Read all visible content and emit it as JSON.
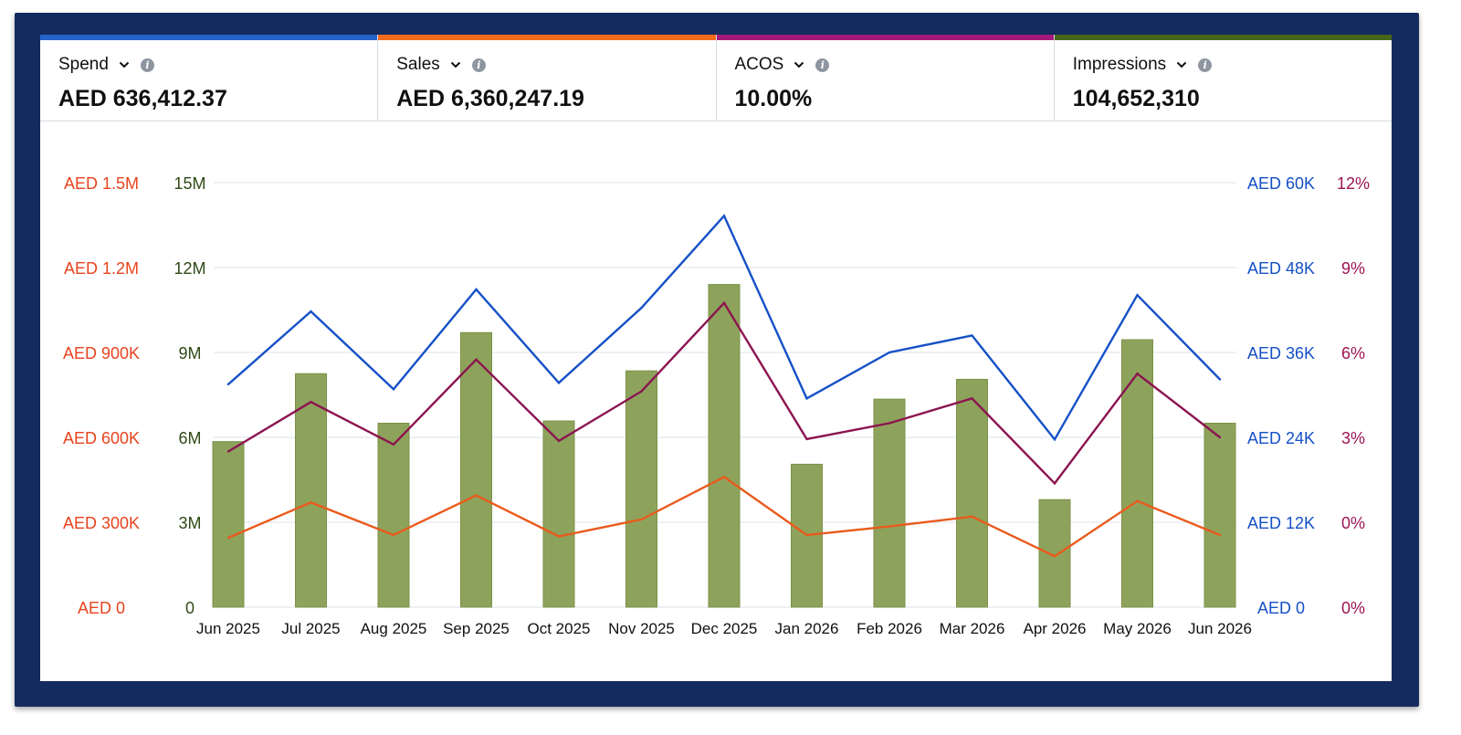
{
  "metrics": [
    {
      "label": "Spend",
      "value": "AED 636,412.37",
      "color": "#2563c9"
    },
    {
      "label": "Sales",
      "value": "AED  6,360,247.19",
      "color": "#f26b1d"
    },
    {
      "label": "ACOS",
      "value": "10.00%",
      "color": "#a3197a"
    },
    {
      "label": "Impressions",
      "value": "104,652,310",
      "color": "#47661a"
    }
  ],
  "chart_data": {
    "type": "bar",
    "categories": [
      "Jun 2025",
      "Jul 2025",
      "Aug 2025",
      "Sep 2025",
      "Oct 2025",
      "Nov 2025",
      "Dec 2025",
      "Jan 2026",
      "Feb 2026",
      "Mar 2026",
      "Apr 2026",
      "May 2026",
      "Jun 2026"
    ],
    "grid": true,
    "axes": {
      "left_outer": {
        "ticks": [
          "AED 0",
          "AED 300K",
          "AED 600K",
          "AED 900K",
          "AED 1.2M",
          "AED 1.5M"
        ],
        "range": [
          0,
          1500000
        ],
        "color": "#e8431e"
      },
      "left_inner": {
        "ticks": [
          "0",
          "3M",
          "6M",
          "9M",
          "12M",
          "15M"
        ],
        "range": [
          0,
          15000000
        ],
        "color": "#2f4a16"
      },
      "right_inner": {
        "ticks": [
          "AED 0",
          "AED 12K",
          "AED 24K",
          "AED 36K",
          "AED 48K",
          "AED 60K"
        ],
        "range": [
          0,
          60000
        ],
        "color": "#1550c7"
      },
      "right_outer": {
        "ticks": [
          "0%",
          "0%",
          "3%",
          "6%",
          "9%",
          "12%"
        ],
        "range": [
          0,
          12
        ],
        "color": "#9c1453"
      }
    },
    "series": [
      {
        "type": "bar",
        "axis": "left_inner",
        "color": "#8da35c",
        "values": [
          5850000,
          8250000,
          6500000,
          9700000,
          6580000,
          8350000,
          11400000,
          5050000,
          7350000,
          8050000,
          3800000,
          9450000,
          6500000
        ]
      },
      {
        "type": "line",
        "axis": "right_inner",
        "color": "#1550c7",
        "values": [
          31500,
          41800,
          30800,
          44900,
          31700,
          42300,
          55300,
          29500,
          36000,
          38400,
          23700,
          44100,
          32200
        ]
      },
      {
        "type": "line",
        "axis": "right_outer",
        "color": "#8c1450",
        "values": [
          4.4,
          5.8,
          4.6,
          7.0,
          4.7,
          6.1,
          8.6,
          4.75,
          5.2,
          5.9,
          3.5,
          6.6,
          4.8
        ]
      },
      {
        "type": "line",
        "axis": "left_outer",
        "color": "#ea5a1c",
        "values": [
          245000,
          370000,
          255000,
          395000,
          250000,
          310000,
          460000,
          255000,
          285000,
          320000,
          180000,
          375000,
          255000
        ]
      }
    ]
  }
}
